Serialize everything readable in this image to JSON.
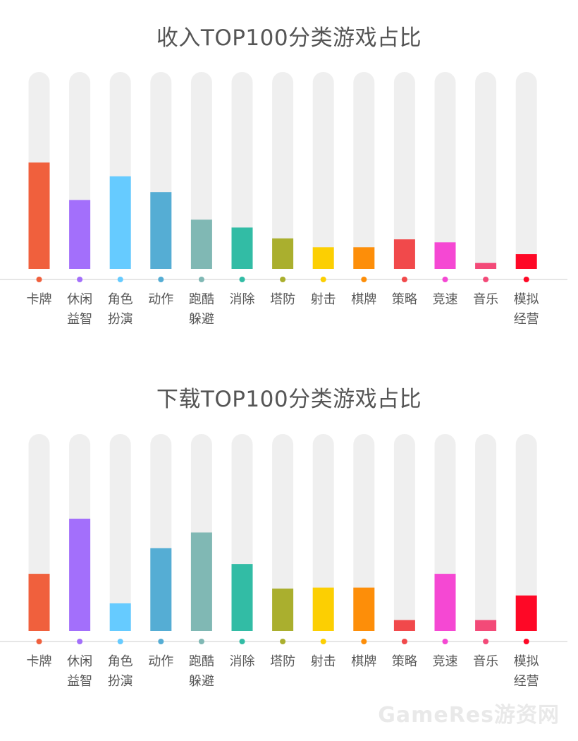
{
  "watermark": "GameRes游资网",
  "chart_data": [
    {
      "type": "bar",
      "title": "收入TOP100分类游戏占比",
      "categories": [
        "卡牌",
        "休闲益智",
        "角色扮演",
        "动作",
        "跑酷躲避",
        "消除",
        "塔防",
        "射击",
        "棋牌",
        "策略",
        "竞速",
        "音乐",
        "模拟经营"
      ],
      "label_lines": [
        [
          "卡牌"
        ],
        [
          "休闲",
          "益智"
        ],
        [
          "角色",
          "扮演"
        ],
        [
          "动作"
        ],
        [
          "跑酷",
          "躲避"
        ],
        [
          "消除"
        ],
        [
          "塔防"
        ],
        [
          "射击"
        ],
        [
          "棋牌"
        ],
        [
          "策略"
        ],
        [
          "竞速"
        ],
        [
          "音乐"
        ],
        [
          "模拟",
          "经营"
        ]
      ],
      "values": [
        54,
        35,
        47,
        39,
        25,
        21,
        15.5,
        11,
        11,
        15,
        13.5,
        3,
        7.5
      ],
      "ylim": [
        0,
        100
      ],
      "colors": [
        "#f0603d",
        "#a36ffb",
        "#66cbff",
        "#55add4",
        "#80b8b4",
        "#32bca5",
        "#aaaf2e",
        "#fccf02",
        "#fd8e09",
        "#f1494b",
        "#f548d3",
        "#f34a78",
        "#fe0826"
      ]
    },
    {
      "type": "bar",
      "title": "下载TOP100分类游戏占比",
      "categories": [
        "卡牌",
        "休闲益智",
        "角色扮演",
        "动作",
        "跑酷躲避",
        "消除",
        "塔防",
        "射击",
        "棋牌",
        "策略",
        "竞速",
        "音乐",
        "模拟经营"
      ],
      "label_lines": [
        [
          "卡牌"
        ],
        [
          "休闲",
          "益智"
        ],
        [
          "角色",
          "扮演"
        ],
        [
          "动作"
        ],
        [
          "跑酷",
          "躲避"
        ],
        [
          "消除"
        ],
        [
          "塔防"
        ],
        [
          "射击"
        ],
        [
          "棋牌"
        ],
        [
          "策略"
        ],
        [
          "竞速"
        ],
        [
          "音乐"
        ],
        [
          "模拟",
          "经营"
        ]
      ],
      "values": [
        29,
        57,
        14,
        42,
        50,
        34,
        21.5,
        22,
        22,
        5.5,
        29,
        5.5,
        18
      ],
      "ylim": [
        0,
        100
      ],
      "colors": [
        "#f0603d",
        "#a36ffb",
        "#66cbff",
        "#55add4",
        "#80b8b4",
        "#32bca5",
        "#aaaf2e",
        "#fccf02",
        "#fd8e09",
        "#f1494b",
        "#f548d3",
        "#f34a78",
        "#fe0826"
      ]
    }
  ]
}
